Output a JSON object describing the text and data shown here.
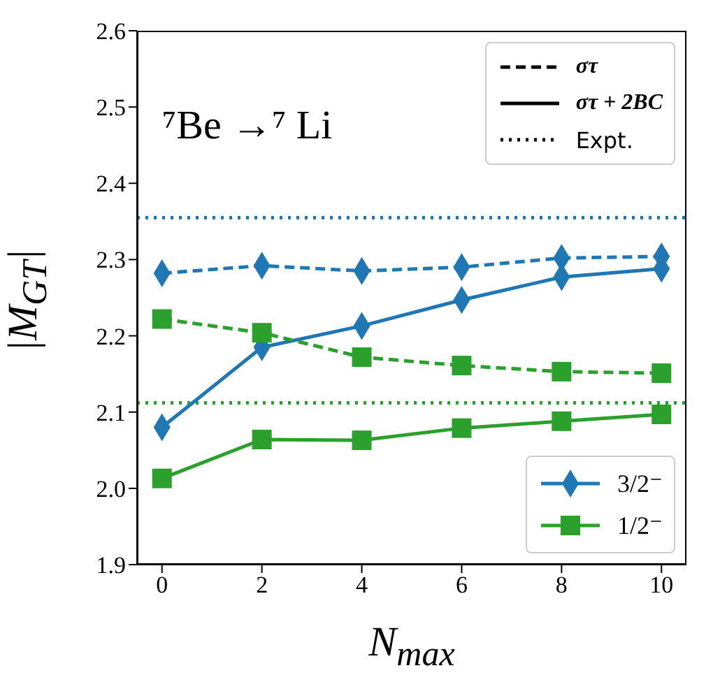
{
  "chart_data": {
    "type": "line",
    "title": "⁷Be →⁷ Li",
    "xlabel": "N$_{max}$",
    "ylabel": "|M$_{GT}$|",
    "x": [
      0,
      2,
      4,
      6,
      8,
      10
    ],
    "series": [
      {
        "color": "#1f77b4",
        "line_style": "dashed",
        "marker": "diamond",
        "values": [
          2.282,
          2.292,
          2.285,
          2.29,
          2.302,
          2.304
        ]
      },
      {
        "name": "3/2⁻",
        "color": "#1f77b4",
        "line_style": "solid",
        "marker": "diamond",
        "values": [
          2.08,
          2.185,
          2.213,
          2.247,
          2.277,
          2.288
        ]
      },
      {
        "color": "#2ca02c",
        "line_style": "dashed",
        "marker": "square",
        "values": [
          2.222,
          2.204,
          2.172,
          2.161,
          2.153,
          2.151
        ]
      },
      {
        "name": "1/2⁻",
        "color": "#2ca02c",
        "line_style": "solid",
        "marker": "square",
        "values": [
          2.013,
          2.064,
          2.063,
          2.079,
          2.088,
          2.097
        ]
      }
    ],
    "ref_lines": [
      {
        "axis": "y",
        "value": 2.355,
        "color": "#1f77b4",
        "line_style": "dotted"
      },
      {
        "axis": "y",
        "value": 2.112,
        "color": "#2ca02c",
        "line_style": "dotted"
      }
    ],
    "annotations": [
      "στ",
      "στ + 2BC",
      "Expt."
    ],
    "xlim": [
      -0.5,
      10.5
    ],
    "xticks": [
      0,
      2,
      4,
      6,
      8,
      10
    ],
    "ylim": [
      1.9,
      2.6
    ],
    "yticks": [
      1.9,
      {
        "value": 2,
        "label": "2.0"
      },
      2.1,
      2.2,
      2.3,
      2.4,
      2.5,
      2.6
    ],
    "legend": "bottom right",
    "grid": false
  }
}
